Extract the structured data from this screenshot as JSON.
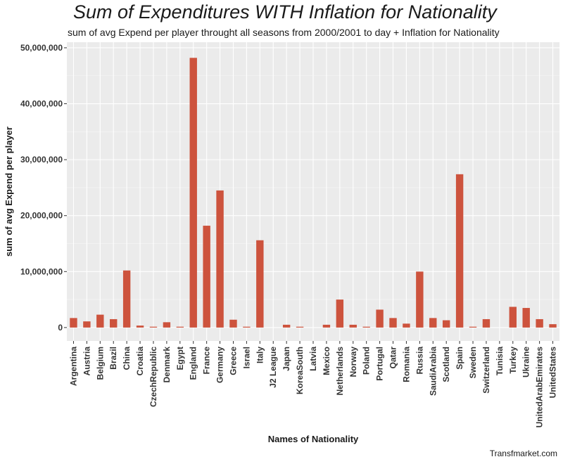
{
  "chart_data": {
    "type": "bar",
    "title": "Sum of Expenditures WITH Inflation for Nationality",
    "subtitle": "sum of avg Expend  per player throught all seasons from 2000/2001 to day + Inflation for Nationality",
    "xlabel": "Names of Nationality",
    "ylabel": "sum of avg Expend  per player",
    "caption": "Transfmarket.com",
    "ylim": [
      -2400000,
      51000000
    ],
    "yticks": [
      0,
      10000000,
      20000000,
      30000000,
      40000000,
      50000000
    ],
    "ytick_labels": [
      "0",
      "10,000,000",
      "20,000,000",
      "30,000,000",
      "40,000,000",
      "50,000,000"
    ],
    "grid": true,
    "bar_color": "#cd533d",
    "panel_color": "#ebebeb",
    "categories": [
      "Argentina",
      "Austria",
      "Belgium",
      "Brazil",
      "China",
      "Croatia",
      "CzechRepublic",
      "Denmark",
      "Egypt",
      "England",
      "France",
      "Germany",
      "Greece",
      "Israel",
      "Italy",
      "J2 League",
      "Japan",
      "KoreaSouth",
      "Latvia",
      "Mexico",
      "Netherlands",
      "Norway",
      "Poland",
      "Portugal",
      "Qatar",
      "Romania",
      "Russia",
      "SaudiArabia",
      "Scotland",
      "Spain",
      "Sweden",
      "Switzerland",
      "Tunisia",
      "Turkey",
      "Ukraine",
      "UnitedArabEmirates",
      "UnitedStates"
    ],
    "values": [
      1700000,
      1100000,
      2300000,
      1500000,
      10200000,
      350000,
      150000,
      950000,
      150000,
      48200000,
      18200000,
      24500000,
      1400000,
      150000,
      15600000,
      0,
      500000,
      150000,
      0,
      500000,
      5000000,
      500000,
      150000,
      3200000,
      1700000,
      700000,
      10000000,
      1700000,
      1300000,
      27400000,
      150000,
      1500000,
      0,
      3700000,
      3500000,
      1500000,
      600000
    ]
  }
}
